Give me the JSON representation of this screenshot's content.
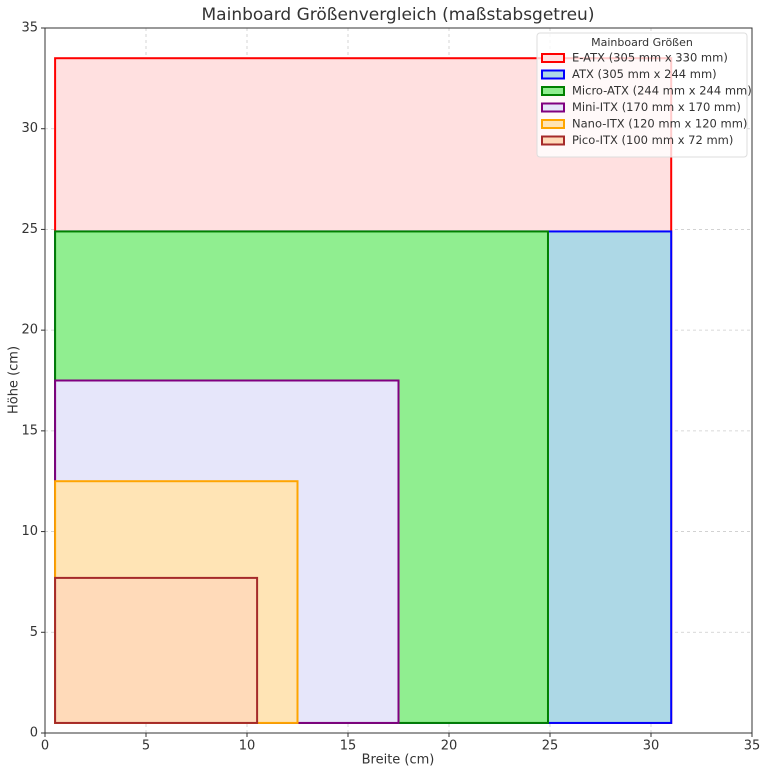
{
  "chart_data": {
    "type": "rectangles",
    "title": "Mainboard Größenvergleich (maßstabsgetreu)",
    "x_label": "Breite (cm)",
    "y_label": "Höhe (cm)",
    "legend_title": "Mainboard Größen",
    "legend": "upper right",
    "grid": true,
    "xlim": [
      0,
      35
    ],
    "ylim": [
      0,
      35
    ],
    "xticks": [
      0,
      5,
      10,
      15,
      20,
      25,
      30,
      35
    ],
    "yticks": [
      0,
      5,
      10,
      15,
      20,
      25,
      30,
      35
    ],
    "series": [
      {
        "name": "E-ATX (305 mm x 330 mm)",
        "color": "#ff0000",
        "fill": "#ffe0e0",
        "x": 0.5,
        "y": 0.5,
        "width": 30.5,
        "height": 33
      },
      {
        "name": "ATX (305 mm x 244 mm)",
        "color": "#0000ff",
        "fill": "#add8e6",
        "x": 0.5,
        "y": 0.5,
        "width": 30.5,
        "height": 24.4
      },
      {
        "name": "Micro-ATX (244 mm x 244 mm)",
        "color": "#008000",
        "fill": "#90ee90",
        "x": 0.5,
        "y": 0.5,
        "width": 24.4,
        "height": 24.4
      },
      {
        "name": "Mini-ITX (170 mm x 170 mm)",
        "color": "#800080",
        "fill": "#e6e6fa",
        "x": 0.5,
        "y": 0.5,
        "width": 17,
        "height": 17
      },
      {
        "name": "Nano-ITX (120 mm x 120 mm)",
        "color": "#ffa500",
        "fill": "#ffe4b5",
        "x": 0.5,
        "y": 0.5,
        "width": 12,
        "height": 12
      },
      {
        "name": "Pico-ITX (100 mm x 72 mm)",
        "color": "#a52a2a",
        "fill": "#ffdab9",
        "x": 0.5,
        "y": 0.5,
        "width": 10,
        "height": 7.2
      }
    ]
  }
}
